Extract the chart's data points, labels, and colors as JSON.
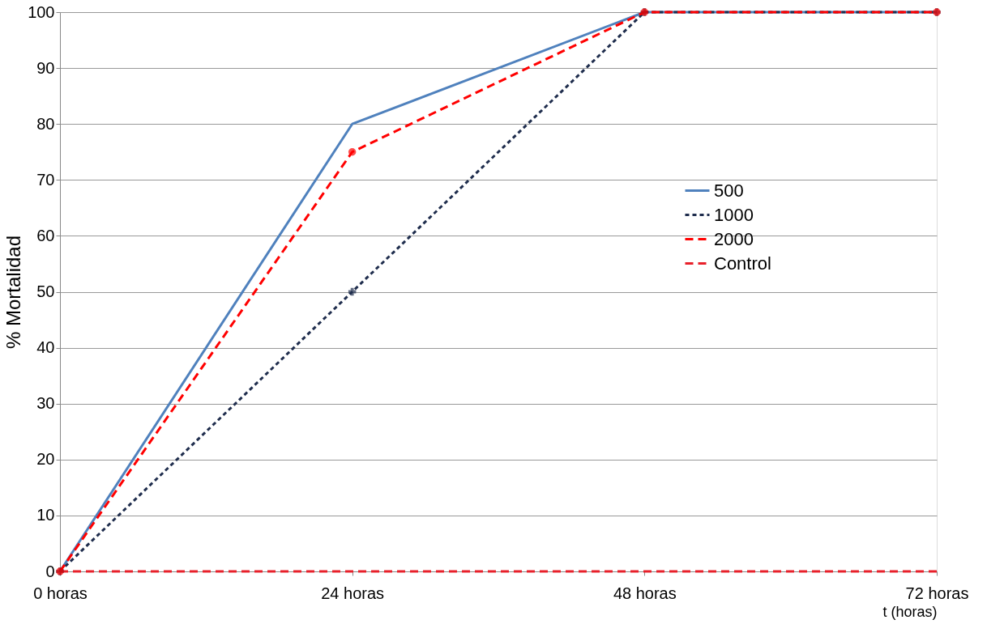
{
  "chart_data": {
    "type": "line",
    "xlabel": "t (horas)",
    "ylabel": "% Mortalidad",
    "categories": [
      "0 horas",
      "24 horas",
      "48 horas",
      "72 horas"
    ],
    "series": [
      {
        "name": "500",
        "color": "#4f81bd",
        "values": [
          0,
          80,
          100,
          100
        ],
        "line_style": "solid",
        "marker": "none"
      },
      {
        "name": "1000",
        "color": "#1f2d4d",
        "values": [
          0,
          50,
          100,
          100
        ],
        "line_style": "dotted",
        "marker": "cross"
      },
      {
        "name": "2000",
        "color": "#ff0000",
        "values": [
          0,
          75,
          100,
          100
        ],
        "line_style": "dashed",
        "marker": "circle"
      },
      {
        "name": "Control",
        "color": "#e8202a",
        "values": [
          0,
          0,
          0,
          0
        ],
        "line_style": "dashed",
        "marker": "none"
      }
    ],
    "ylim": [
      0,
      100
    ],
    "yticks": [
      0,
      10,
      20,
      30,
      40,
      50,
      60,
      70,
      80,
      90,
      100
    ],
    "grid": "y",
    "legend": "right"
  }
}
